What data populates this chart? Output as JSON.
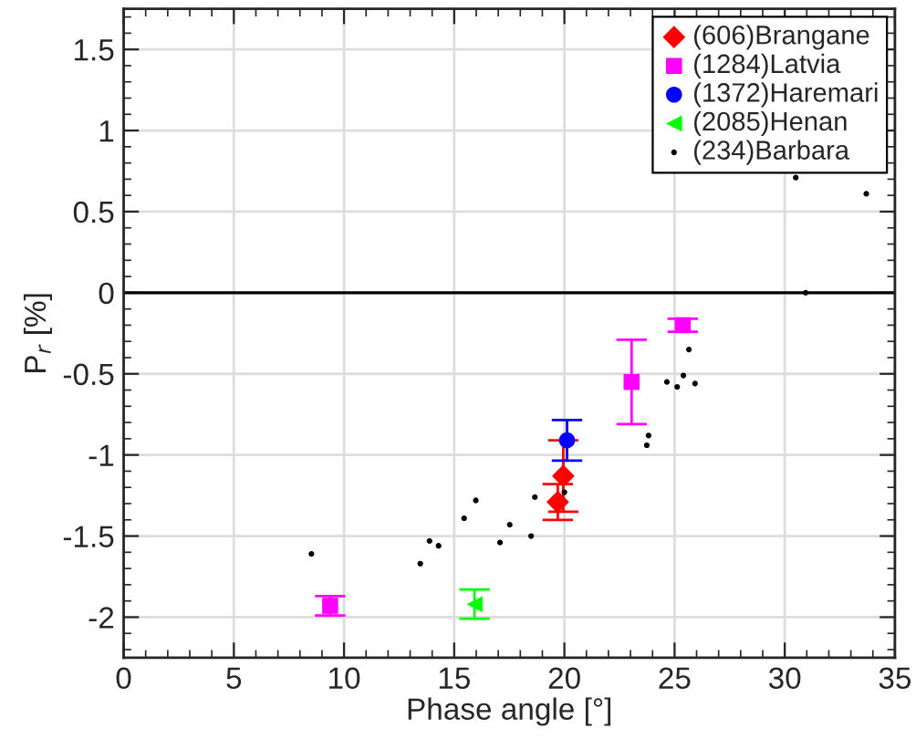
{
  "chart_data": {
    "type": "scatter",
    "xlabel": "Phase angle [°]",
    "ylabel": "P$_{r}$ [%]",
    "xlim": [
      0,
      35
    ],
    "xticks": [
      0,
      5,
      10,
      15,
      20,
      25,
      30,
      35
    ],
    "ylim": [
      -2.25,
      1.75
    ],
    "yticks": [
      -2,
      -1.5,
      -1,
      -0.5,
      0,
      0.5,
      1,
      1.5
    ],
    "grid": true,
    "legend": "top right",
    "ref_lines": [
      {
        "axis": "y",
        "value": 0,
        "color": "#000000"
      }
    ],
    "series": [
      {
        "name": "(606)Brangane",
        "color": "#ff0000",
        "marker": "diamond",
        "x": [
          19.7,
          19.95
        ],
        "values": [
          -1.29,
          -1.13
        ],
        "errors": [
          0.11,
          0.22
        ]
      },
      {
        "name": "(1284)Latvia",
        "color": "#ff00ff",
        "marker": "square",
        "x": [
          9.37,
          23.05,
          25.37
        ],
        "values": [
          -1.93,
          -0.55,
          -0.2
        ],
        "errors": [
          0.06,
          0.26,
          0.04
        ]
      },
      {
        "name": "(1372)Haremari",
        "color": "#0000ff",
        "marker": "circle",
        "x": [
          20.12
        ],
        "values": [
          -0.91
        ],
        "errors": [
          0.125
        ]
      },
      {
        "name": "(2085)Henan",
        "color": "#00ff00",
        "marker": "triangle",
        "x": [
          15.92
        ],
        "values": [
          -1.92
        ],
        "errors": [
          0.09
        ]
      },
      {
        "name": "(234)Barbara",
        "color": "#000000",
        "marker": "circle",
        "x": [
          8.52,
          13.46,
          13.88,
          14.29,
          15.45,
          15.98,
          17.08,
          17.52,
          18.49,
          18.66,
          20.0,
          23.74,
          23.82,
          24.65,
          25.12,
          25.4,
          25.65,
          25.93,
          30.5,
          30.95,
          33.7
        ],
        "values": [
          -1.61,
          -1.67,
          -1.53,
          -1.56,
          -1.39,
          -1.28,
          -1.54,
          -1.43,
          -1.5,
          -1.26,
          -1.23,
          -0.94,
          -0.88,
          -0.55,
          -0.58,
          -0.51,
          -0.35,
          -0.56,
          0.71,
          0.0,
          0.61
        ]
      }
    ]
  }
}
